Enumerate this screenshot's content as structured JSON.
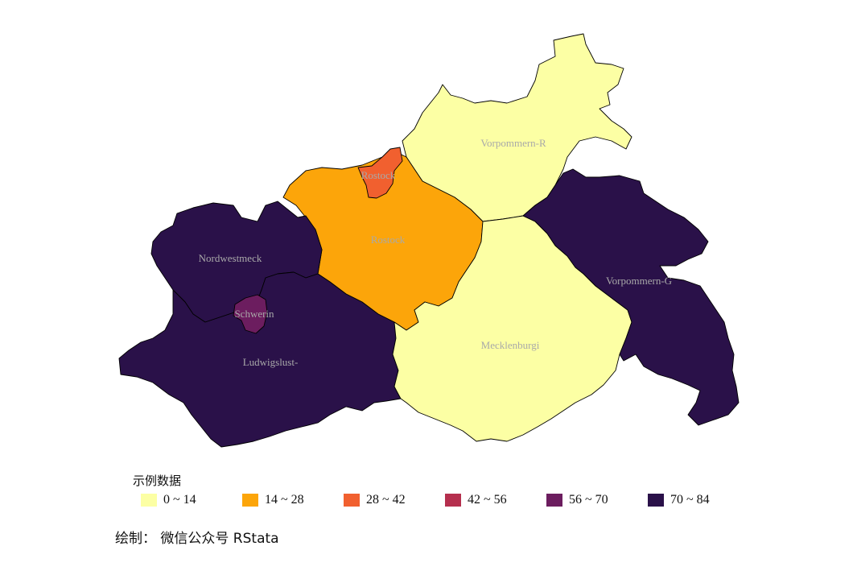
{
  "map": {
    "regions": [
      {
        "id": "vorpommern-r",
        "label": "Vorpommern-R",
        "bin": 0
      },
      {
        "id": "rostock-city",
        "label": "Rostock",
        "bin": 2
      },
      {
        "id": "rostock",
        "label": "Rostock",
        "bin": 1
      },
      {
        "id": "nordwestmeck",
        "label": "Nordwestmeck",
        "bin": 5
      },
      {
        "id": "schwerin",
        "label": "Schwerin",
        "bin": 5
      },
      {
        "id": "ludwigslust",
        "label": "Ludwigslust-",
        "bin": 4
      },
      {
        "id": "mecklenburgi",
        "label": "Mecklenburgi",
        "bin": 0
      },
      {
        "id": "vorpommern-g",
        "label": "Vorpommern-G",
        "bin": 5
      }
    ]
  },
  "legend": {
    "title": "示例数据",
    "items": [
      {
        "label": "0 ~ 14",
        "color": "#FCFFA4"
      },
      {
        "label": "14 ~ 28",
        "color": "#FCA50A"
      },
      {
        "label": "28 ~ 42",
        "color": "#F1602F"
      },
      {
        "label": "42 ~ 56",
        "color": "#B52F4E"
      },
      {
        "label": "56 ~ 70",
        "color": "#6C1D5F"
      },
      {
        "label": "70 ~ 84",
        "color": "#2A1149"
      }
    ]
  },
  "caption": "绘制： 微信公众号 RStata"
}
